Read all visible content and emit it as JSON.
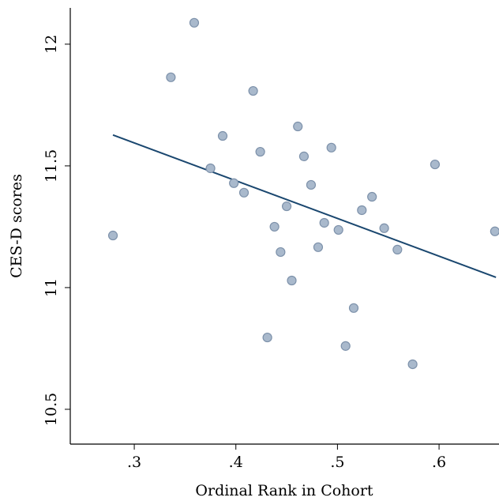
{
  "chart_data": {
    "type": "scatter",
    "xlabel": "Ordinal Rank in Cohort",
    "ylabel": "CES-D scores",
    "xlim": [
      0.237,
      0.659
    ],
    "ylim": [
      10.357,
      12.149
    ],
    "xticks": [
      {
        "value": 0.3,
        "label": ".3"
      },
      {
        "value": 0.4,
        "label": ".4"
      },
      {
        "value": 0.5,
        "label": ".5"
      },
      {
        "value": 0.6,
        "label": ".6"
      }
    ],
    "yticks": [
      10.5,
      11,
      11.5,
      12
    ],
    "series": [
      {
        "color": "#a9b9cc",
        "x": [
          0.279,
          0.359,
          0.336,
          0.417,
          0.387,
          0.461,
          0.424,
          0.467,
          0.494,
          0.596,
          0.375,
          0.398,
          0.408,
          0.474,
          0.534,
          0.45,
          0.524,
          0.438,
          0.487,
          0.501,
          0.546,
          0.655,
          0.444,
          0.481,
          0.559,
          0.455,
          0.516,
          0.431,
          0.508,
          0.574
        ],
        "values": [
          11.214,
          12.088,
          11.864,
          11.808,
          11.623,
          11.662,
          11.558,
          11.539,
          11.575,
          11.506,
          11.49,
          11.429,
          11.39,
          11.422,
          11.373,
          11.334,
          11.318,
          11.25,
          11.266,
          11.237,
          11.244,
          11.231,
          11.146,
          11.166,
          11.156,
          11.029,
          10.916,
          10.795,
          10.76,
          10.685
        ]
      },
      {
        "color": "#1a476f",
        "x": [
          0.279,
          0.656
        ],
        "values": [
          11.627,
          11.042
        ]
      }
    ]
  }
}
